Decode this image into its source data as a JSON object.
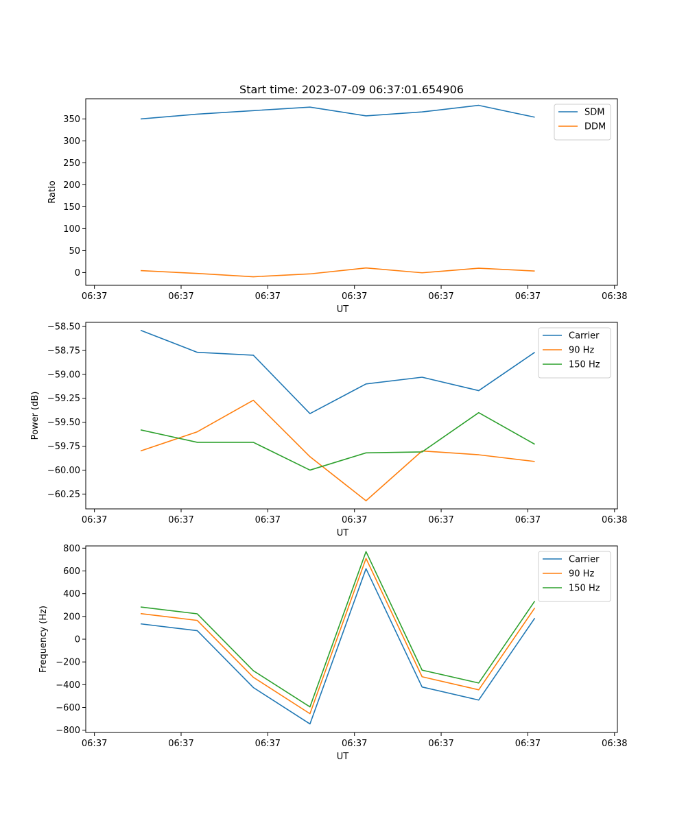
{
  "figure_title": "Start time: 2023-07-09 06:37:01.654906",
  "chart_data": [
    {
      "type": "line",
      "id": "ratio",
      "title": "Start time: 2023-07-09 06:37:01.654906",
      "xlabel": "UT",
      "ylabel": "Ratio",
      "xlim": [
        0,
        9.2
      ],
      "ylim": [
        -29,
        396
      ],
      "x": [
        0.95,
        1.93,
        2.9,
        3.88,
        4.85,
        5.82,
        6.8,
        7.77
      ],
      "xticks": [
        {
          "value": 0.15,
          "label": "06:37"
        },
        {
          "value": 1.65,
          "label": "06:37"
        },
        {
          "value": 3.15,
          "label": "06:37"
        },
        {
          "value": 4.65,
          "label": "06:37"
        },
        {
          "value": 6.15,
          "label": "06:37"
        },
        {
          "value": 7.65,
          "label": "06:37"
        },
        {
          "value": 9.15,
          "label": "06:38"
        }
      ],
      "yticks": [
        {
          "value": 0,
          "label": "0"
        },
        {
          "value": 50,
          "label": "50"
        },
        {
          "value": 100,
          "label": "100"
        },
        {
          "value": 150,
          "label": "150"
        },
        {
          "value": 200,
          "label": "200"
        },
        {
          "value": 250,
          "label": "250"
        },
        {
          "value": 300,
          "label": "300"
        },
        {
          "value": 350,
          "label": "350"
        }
      ],
      "legend": "top-right",
      "grid": false,
      "series": [
        {
          "name": "SDM",
          "color": "#1f77b4",
          "values": [
            350,
            361,
            369,
            377,
            357,
            366,
            381,
            354
          ]
        },
        {
          "name": "DDM",
          "color": "#ff7f0e",
          "values": [
            4.5,
            -2,
            -9.5,
            -3,
            10.5,
            -0.5,
            10,
            3.5
          ]
        }
      ]
    },
    {
      "type": "line",
      "id": "power",
      "title": "",
      "xlabel": "UT",
      "ylabel": "Power (dB)",
      "xlim": [
        0,
        9.2
      ],
      "ylim": [
        -60.405,
        -58.457
      ],
      "x": [
        0.95,
        1.93,
        2.9,
        3.88,
        4.85,
        5.82,
        6.8,
        7.77
      ],
      "xticks": [
        {
          "value": 0.15,
          "label": "06:37"
        },
        {
          "value": 1.65,
          "label": "06:37"
        },
        {
          "value": 3.15,
          "label": "06:37"
        },
        {
          "value": 4.65,
          "label": "06:37"
        },
        {
          "value": 6.15,
          "label": "06:37"
        },
        {
          "value": 7.65,
          "label": "06:37"
        },
        {
          "value": 9.15,
          "label": "06:38"
        }
      ],
      "yticks": [
        {
          "value": -60.25,
          "label": "−60.25"
        },
        {
          "value": -60.0,
          "label": "−60.00"
        },
        {
          "value": -59.75,
          "label": "−59.75"
        },
        {
          "value": -59.5,
          "label": "−59.50"
        },
        {
          "value": -59.25,
          "label": "−59.25"
        },
        {
          "value": -59.0,
          "label": "−59.00"
        },
        {
          "value": -58.75,
          "label": "−58.75"
        },
        {
          "value": -58.5,
          "label": "−58.50"
        }
      ],
      "legend": "top-right",
      "grid": false,
      "series": [
        {
          "name": "Carrier",
          "color": "#1f77b4",
          "values": [
            -58.54,
            -58.77,
            -58.8,
            -59.41,
            -59.1,
            -59.03,
            -59.17,
            -58.77
          ]
        },
        {
          "name": "90 Hz",
          "color": "#ff7f0e",
          "values": [
            -59.8,
            -59.6,
            -59.27,
            -59.86,
            -60.32,
            -59.8,
            -59.84,
            -59.91
          ]
        },
        {
          "name": "150 Hz",
          "color": "#2ca02c",
          "values": [
            -59.58,
            -59.71,
            -59.71,
            -60.0,
            -59.82,
            -59.81,
            -59.4,
            -59.73
          ]
        }
      ]
    },
    {
      "type": "line",
      "id": "frequency",
      "title": "",
      "xlabel": "UT",
      "ylabel": "Frequency (Hz)",
      "xlim": [
        0,
        9.2
      ],
      "ylim": [
        -820,
        820
      ],
      "x": [
        0.95,
        1.93,
        2.9,
        3.88,
        4.85,
        5.82,
        6.8,
        7.77
      ],
      "xticks": [
        {
          "value": 0.15,
          "label": "06:37"
        },
        {
          "value": 1.65,
          "label": "06:37"
        },
        {
          "value": 3.15,
          "label": "06:37"
        },
        {
          "value": 4.65,
          "label": "06:37"
        },
        {
          "value": 6.15,
          "label": "06:37"
        },
        {
          "value": 7.65,
          "label": "06:37"
        },
        {
          "value": 9.15,
          "label": "06:38"
        }
      ],
      "yticks": [
        {
          "value": -800,
          "label": "−800"
        },
        {
          "value": -600,
          "label": "−600"
        },
        {
          "value": -400,
          "label": "−400"
        },
        {
          "value": -200,
          "label": "−200"
        },
        {
          "value": 0,
          "label": "0"
        },
        {
          "value": 200,
          "label": "200"
        },
        {
          "value": 400,
          "label": "400"
        },
        {
          "value": 600,
          "label": "600"
        },
        {
          "value": 800,
          "label": "800"
        }
      ],
      "legend": "top-right",
      "grid": false,
      "series": [
        {
          "name": "Carrier",
          "color": "#1f77b4",
          "values": [
            135,
            75,
            -425,
            -745,
            620,
            -420,
            -535,
            185
          ]
        },
        {
          "name": "90 Hz",
          "color": "#ff7f0e",
          "values": [
            225,
            165,
            -335,
            -655,
            710,
            -330,
            -445,
            275
          ]
        },
        {
          "name": "150 Hz",
          "color": "#2ca02c",
          "values": [
            283,
            223,
            -277,
            -595,
            770,
            -272,
            -385,
            335
          ]
        }
      ]
    }
  ]
}
